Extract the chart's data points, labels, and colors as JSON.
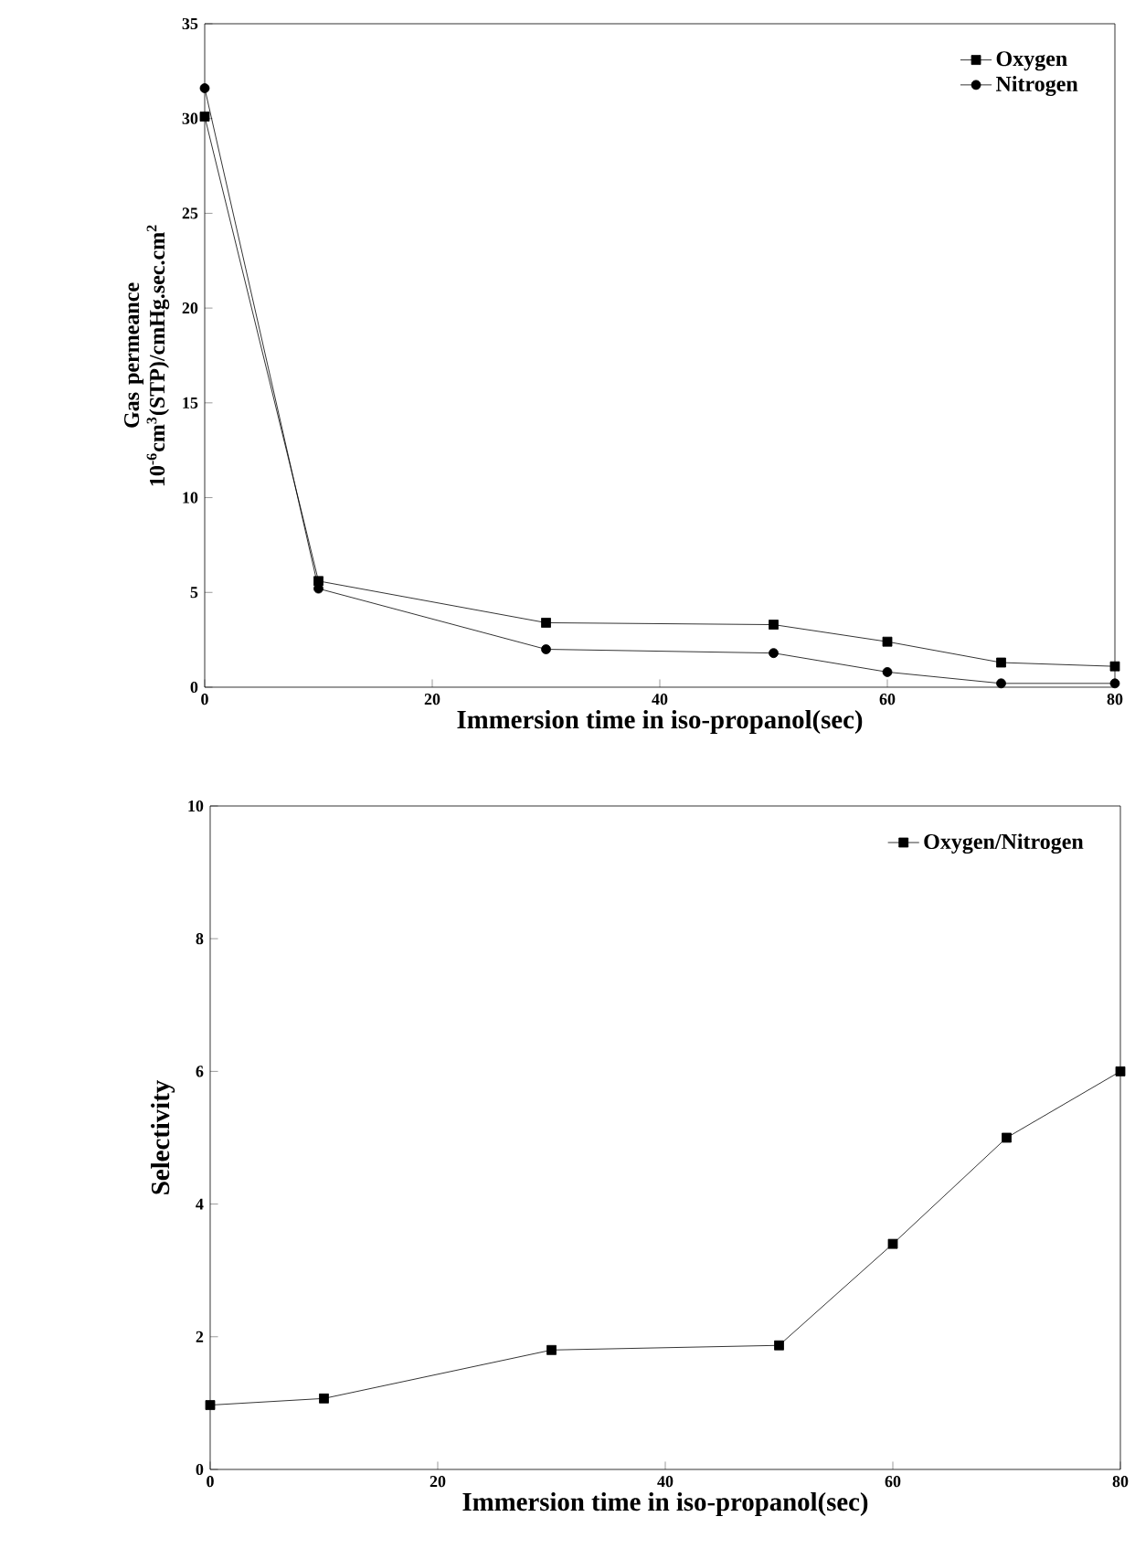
{
  "chart_data": [
    {
      "type": "line",
      "xlabel": "Immersion time in iso-propanol(sec)",
      "ylabel": "Gas permeance 10$^{-6}$cm$^{3}$(STP)/cmHg.sec.cm$^{2}$",
      "x": [
        0,
        10,
        30,
        50,
        60,
        70,
        80
      ],
      "series": [
        {
          "name": "Oxygen",
          "color": "#000000",
          "marker": "square",
          "values": [
            30.1,
            5.6,
            3.4,
            3.3,
            2.4,
            1.3,
            1.1
          ]
        },
        {
          "name": "Nitrogen",
          "color": "#000000",
          "marker": "circle",
          "values": [
            31.6,
            5.2,
            2.0,
            1.8,
            0.8,
            0.2,
            0.2
          ]
        }
      ],
      "xlim": [
        0,
        80
      ],
      "xticks": [
        0,
        20,
        40,
        60,
        80
      ],
      "ylim": [
        0,
        35
      ],
      "yticks": [
        0,
        5,
        10,
        15,
        20,
        25,
        30,
        35
      ],
      "legend": "top right"
    },
    {
      "type": "line",
      "xlabel": "Immersion time in iso-propanol(sec)",
      "ylabel": "Selectivity",
      "x": [
        0,
        10,
        30,
        50,
        60,
        70,
        80
      ],
      "series": [
        {
          "name": "Oxygen/Nitrogen",
          "color": "#000000",
          "marker": "square",
          "values": [
            0.97,
            1.07,
            1.8,
            1.87,
            3.4,
            5.0,
            6.0
          ]
        }
      ],
      "xlim": [
        0,
        80
      ],
      "xticks": [
        0,
        20,
        40,
        60,
        80
      ],
      "ylim": [
        0,
        10
      ],
      "yticks": [
        0,
        2,
        4,
        6,
        8,
        10
      ],
      "legend": "top right"
    }
  ]
}
